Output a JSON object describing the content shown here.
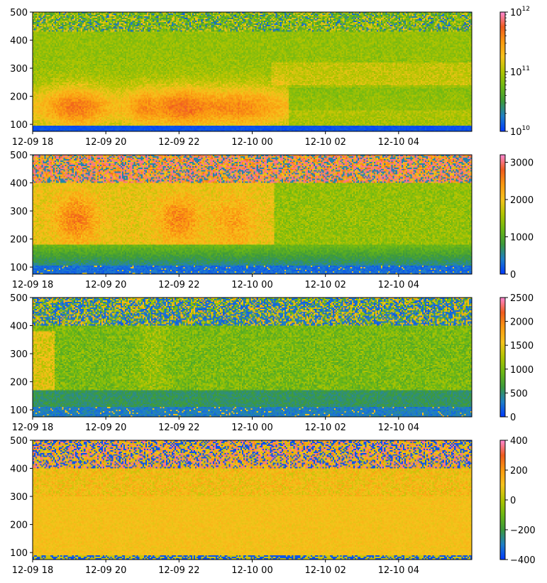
{
  "chart_data": [
    {
      "type": "heatmap",
      "panel": 1,
      "title": "",
      "xlabel": "",
      "ylabel": "",
      "x_tick_labels": [
        "12-09 18",
        "12-09 20",
        "12-09 22",
        "12-10 00",
        "12-10 02",
        "12-10 04"
      ],
      "x_tick_hours": [
        0,
        2,
        4,
        6,
        8,
        10
      ],
      "x_range_hours": [
        0,
        12
      ],
      "y_tick_labels": [
        "100",
        "200",
        "300",
        "400",
        "500"
      ],
      "y_ticks": [
        100,
        200,
        300,
        400,
        500
      ],
      "ylim": [
        75,
        500
      ],
      "colorbar": {
        "scale": "log",
        "range": [
          10000000000,
          1000000000000
        ],
        "tick_bases": [
          "10",
          "10",
          "10"
        ],
        "tick_exponents": [
          "10",
          "11",
          "12"
        ],
        "tick_values": [
          10000000000,
          100000000000,
          1000000000000
        ]
      },
      "description_values": {
        "background_level": 100000000000,
        "low_altitude_value": 10000000000,
        "enhancement_peak": 400000000000
      }
    },
    {
      "type": "heatmap",
      "panel": 2,
      "x_tick_labels": [
        "12-09 18",
        "12-09 20",
        "12-09 22",
        "12-10 00",
        "12-10 02",
        "12-10 04"
      ],
      "x_tick_hours": [
        0,
        2,
        4,
        6,
        8,
        10
      ],
      "x_range_hours": [
        0,
        12
      ],
      "y_tick_labels": [
        "100",
        "200",
        "300",
        "400",
        "500"
      ],
      "y_ticks": [
        100,
        200,
        300,
        400,
        500
      ],
      "ylim": [
        75,
        500
      ],
      "colorbar": {
        "scale": "linear",
        "range": [
          0,
          3200
        ],
        "tick_labels": [
          "0",
          "1000",
          "2000",
          "3000"
        ],
        "tick_values": [
          0,
          1000,
          2000,
          3000
        ]
      }
    },
    {
      "type": "heatmap",
      "panel": 3,
      "x_tick_labels": [
        "12-09 18",
        "12-09 20",
        "12-09 22",
        "12-10 00",
        "12-10 02",
        "12-10 04"
      ],
      "x_tick_hours": [
        0,
        2,
        4,
        6,
        8,
        10
      ],
      "x_range_hours": [
        0,
        12
      ],
      "y_tick_labels": [
        "100",
        "200",
        "300",
        "400",
        "500"
      ],
      "y_ticks": [
        100,
        200,
        300,
        400,
        500
      ],
      "ylim": [
        75,
        500
      ],
      "colorbar": {
        "scale": "linear",
        "range": [
          0,
          2500
        ],
        "tick_labels": [
          "0",
          "500",
          "1000",
          "1500",
          "2000",
          "2500"
        ],
        "tick_values": [
          0,
          500,
          1000,
          1500,
          2000,
          2500
        ]
      }
    },
    {
      "type": "heatmap",
      "panel": 4,
      "x_tick_labels": [
        "12-09 18",
        "12-09 20",
        "12-09 22",
        "12-10 00",
        "12-10 02",
        "12-10 04"
      ],
      "x_tick_hours": [
        0,
        2,
        4,
        6,
        8,
        10
      ],
      "x_range_hours": [
        0,
        12
      ],
      "y_tick_labels": [
        "100",
        "200",
        "300",
        "400",
        "500"
      ],
      "y_ticks": [
        100,
        200,
        300,
        400,
        500
      ],
      "ylim": [
        75,
        500
      ],
      "colorbar": {
        "scale": "linear",
        "range": [
          -400,
          400
        ],
        "tick_labels": [
          "−400",
          "−200",
          "0",
          "200",
          "400"
        ],
        "tick_values": [
          -400,
          -200,
          0,
          200,
          400
        ]
      }
    }
  ],
  "colormap": {
    "stops": [
      "#0039ff",
      "#1f7fc8",
      "#3c9a3c",
      "#6cb814",
      "#b0c400",
      "#f6c31c",
      "#fb9a10",
      "#f05c1e",
      "#ff88d4"
    ]
  }
}
